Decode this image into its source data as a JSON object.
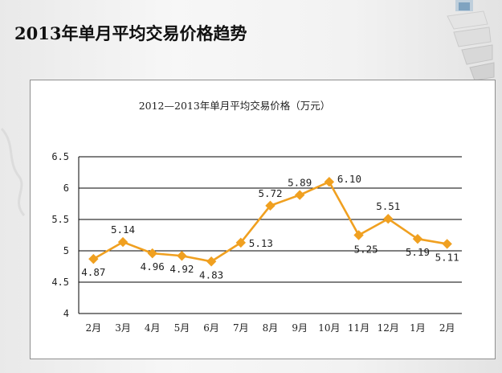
{
  "slide": {
    "title": "2013年单月平均交易价格趋势"
  },
  "colors": {
    "series": "#f0a020",
    "grid": "#000000",
    "background": "#ffffff"
  },
  "chart_data": {
    "type": "line",
    "title": "2012—2013年单月平均交易价格（万元）",
    "xlabel": "",
    "ylabel": "",
    "categories": [
      "2月",
      "3月",
      "4月",
      "5月",
      "6月",
      "7月",
      "8月",
      "9月",
      "10月",
      "11月",
      "12月",
      "1月",
      "2月"
    ],
    "series": [
      {
        "values": [
          4.87,
          5.14,
          4.96,
          4.92,
          4.83,
          5.13,
          5.72,
          5.89,
          6.1,
          5.25,
          5.51,
          5.19,
          5.11
        ],
        "labels": [
          "4.87",
          "5.14",
          "4.96",
          "4.92",
          "4.83",
          "5.13",
          "5.72",
          "5.89",
          "6.10",
          "5.25",
          "5.51",
          "5.19",
          "5.11"
        ],
        "marker": "diamond"
      }
    ],
    "ylim": [
      4,
      6.5
    ],
    "yticks": [
      "4",
      "4.5",
      "5",
      "5.5",
      "6",
      "6.5"
    ],
    "grid": true,
    "legend": "none"
  }
}
